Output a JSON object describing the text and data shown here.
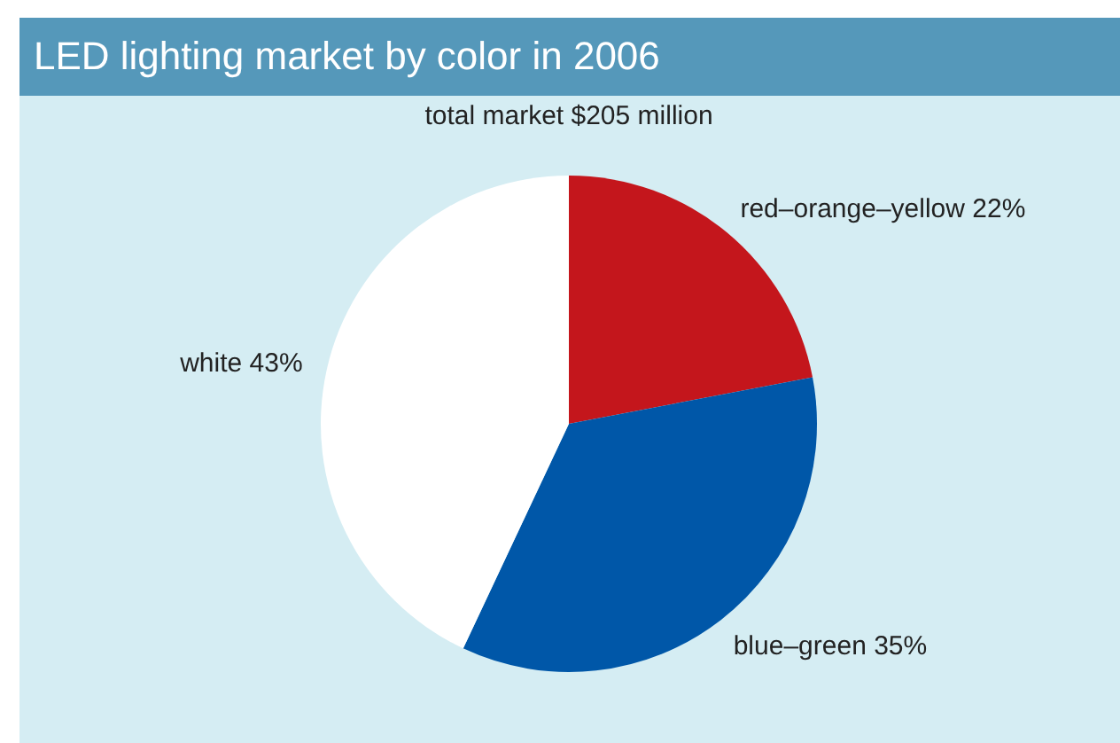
{
  "chart_data": {
    "type": "pie",
    "title": "LED lighting market by color in 2006",
    "subtitle": "total market $205 million",
    "categories": [
      "red–orange–yellow",
      "blue–green",
      "white"
    ],
    "values": [
      22,
      35,
      43
    ],
    "value_labels": [
      "22%",
      "35%",
      "43%"
    ],
    "colors": [
      "#c4161c",
      "#0057a8",
      "#ffffff"
    ],
    "legend": false
  }
}
